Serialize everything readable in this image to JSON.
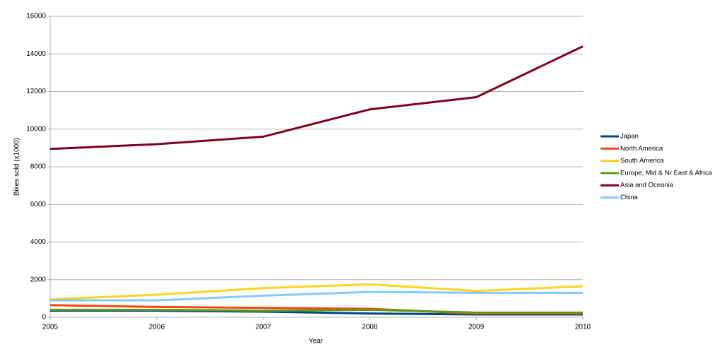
{
  "chart_data": {
    "type": "line",
    "x_label": "Year",
    "y_label": "Bikes sold (x1000)",
    "x": [
      2005,
      2006,
      2007,
      2008,
      2009,
      2010
    ],
    "xlim": [
      2005,
      2010
    ],
    "xticks": [
      2005,
      2006,
      2007,
      2008,
      2009,
      2010
    ],
    "ylim": [
      0,
      16000
    ],
    "yticks": [
      0,
      2000,
      4000,
      6000,
      8000,
      10000,
      12000,
      14000,
      16000
    ],
    "grid": true,
    "legend": "right",
    "series": [
      {
        "name": "Japan",
        "color": "#004586",
        "values": [
          350,
          350,
          300,
          200,
          150,
          150
        ]
      },
      {
        "name": "North America",
        "color": "#ff420e",
        "values": [
          650,
          550,
          500,
          450,
          200,
          200
        ]
      },
      {
        "name": "South America",
        "color": "#ffd320",
        "values": [
          950,
          1200,
          1550,
          1750,
          1400,
          1650
        ]
      },
      {
        "name": "Europe, Mid & Nr East & Africa",
        "color": "#579d1c",
        "values": [
          400,
          400,
          350,
          400,
          250,
          250
        ]
      },
      {
        "name": "Asia and Oceania",
        "color": "#7e0021",
        "values": [
          8950,
          9200,
          9600,
          11050,
          11700,
          14400
        ]
      },
      {
        "name": "China",
        "color": "#83caff",
        "values": [
          900,
          900,
          1150,
          1350,
          1300,
          1300
        ]
      }
    ]
  }
}
